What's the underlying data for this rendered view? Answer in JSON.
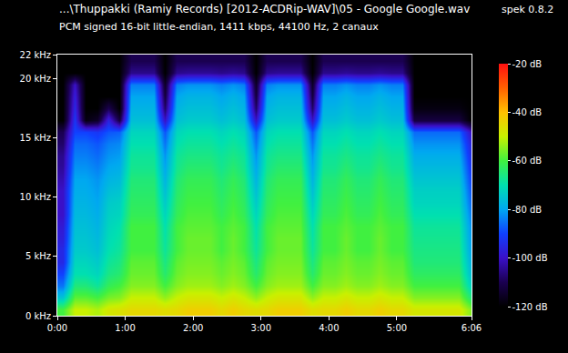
{
  "chart_data": {
    "type": "heatmap",
    "title": "...\\Thuppakki (Ramiy Records) [2012-ACDRip-WAV]\\05 - Google Google.wav",
    "subtitle": "PCM signed 16-bit little-endian, 1411 kbps, 44100 Hz, 2 canaux",
    "annotations": [
      "spek 0.8.2"
    ],
    "x": [
      5,
      15,
      25,
      35,
      45,
      55,
      65,
      75,
      85,
      95,
      105,
      115,
      125,
      135,
      145,
      155,
      165,
      175,
      185,
      195,
      205,
      215,
      225,
      235,
      245,
      255,
      265,
      275,
      285,
      295,
      305,
      315,
      325,
      335,
      345,
      355,
      365
    ],
    "y": [
      0.5,
      1.5,
      2.5,
      3.5,
      4.5,
      5.5,
      6.5,
      7.5,
      8.5,
      9.5,
      10.5,
      11.5,
      12.5,
      13.5,
      14.5,
      15.5,
      16.5,
      17.5,
      18.5,
      19.5,
      20.5,
      21.5
    ],
    "cells": [
      [
        -60,
        -75,
        -85,
        -90,
        -95,
        -95,
        -97,
        -98,
        -100,
        -100,
        -100,
        -102,
        -104,
        -105,
        -108,
        -110,
        -120,
        -120,
        -120,
        -120,
        -120,
        -120
      ],
      [
        -50,
        -58,
        -65,
        -70,
        -72,
        -74,
        -75,
        -76,
        -77,
        -78,
        -79,
        -80,
        -82,
        -84,
        -86,
        -90,
        -92,
        -95,
        -97,
        -100,
        -120,
        -120
      ],
      [
        -50,
        -58,
        -65,
        -70,
        -72,
        -74,
        -75,
        -76,
        -77,
        -78,
        -79,
        -80,
        -82,
        -84,
        -86,
        -90,
        -118,
        -120,
        -120,
        -120,
        -120,
        -120
      ],
      [
        -52,
        -60,
        -68,
        -72,
        -74,
        -76,
        -77,
        -78,
        -79,
        -80,
        -81,
        -82,
        -84,
        -86,
        -88,
        -92,
        -115,
        -120,
        -120,
        -120,
        -120,
        -120
      ],
      [
        -48,
        -56,
        -62,
        -66,
        -68,
        -70,
        -71,
        -72,
        -73,
        -74,
        -76,
        -78,
        -80,
        -82,
        -84,
        -88,
        -96,
        -110,
        -120,
        -120,
        -120,
        -120
      ],
      [
        -47,
        -55,
        -60,
        -64,
        -66,
        -68,
        -69,
        -70,
        -72,
        -73,
        -75,
        -77,
        -79,
        -81,
        -83,
        -87,
        -112,
        -120,
        -120,
        -120,
        -120,
        -120
      ],
      [
        -45,
        -50,
        -55,
        -57,
        -58,
        -60,
        -60,
        -60,
        -62,
        -63,
        -64,
        -65,
        -67,
        -68,
        -70,
        -72,
        -76,
        -78,
        -80,
        -84,
        -105,
        -110
      ],
      [
        -45,
        -50,
        -55,
        -57,
        -58,
        -60,
        -60,
        -60,
        -62,
        -63,
        -64,
        -65,
        -67,
        -68,
        -70,
        -72,
        -76,
        -78,
        -80,
        -84,
        -105,
        -110
      ],
      [
        -45,
        -50,
        -55,
        -57,
        -58,
        -60,
        -60,
        -60,
        -62,
        -63,
        -64,
        -65,
        -67,
        -68,
        -70,
        -72,
        -76,
        -78,
        -80,
        -84,
        -105,
        -110
      ],
      [
        -46,
        -54,
        -60,
        -64,
        -66,
        -68,
        -69,
        -70,
        -72,
        -74,
        -76,
        -78,
        -80,
        -82,
        -85,
        -88,
        -100,
        -108,
        -112,
        -115,
        -120,
        -120
      ],
      [
        -45,
        -50,
        -55,
        -57,
        -58,
        -60,
        -60,
        -60,
        -62,
        -63,
        -64,
        -65,
        -67,
        -68,
        -70,
        -72,
        -76,
        -78,
        -80,
        -84,
        -105,
        -110
      ],
      [
        -43,
        -48,
        -53,
        -55,
        -56,
        -57,
        -57,
        -58,
        -59,
        -60,
        -61,
        -62,
        -64,
        -66,
        -68,
        -70,
        -74,
        -76,
        -78,
        -82,
        -104,
        -110
      ],
      [
        -43,
        -48,
        -53,
        -55,
        -56,
        -57,
        -57,
        -58,
        -59,
        -60,
        -61,
        -62,
        -64,
        -66,
        -68,
        -70,
        -74,
        -76,
        -78,
        -82,
        -104,
        -110
      ],
      [
        -43,
        -48,
        -53,
        -55,
        -56,
        -57,
        -57,
        -58,
        -59,
        -60,
        -61,
        -62,
        -64,
        -66,
        -68,
        -70,
        -74,
        -76,
        -78,
        -82,
        -104,
        -110
      ],
      [
        -45,
        -50,
        -55,
        -57,
        -58,
        -60,
        -60,
        -60,
        -62,
        -63,
        -64,
        -65,
        -67,
        -68,
        -70,
        -72,
        -76,
        -78,
        -80,
        -84,
        -105,
        -110
      ],
      [
        -43,
        -48,
        -53,
        -55,
        -56,
        -57,
        -57,
        -58,
        -59,
        -60,
        -61,
        -62,
        -64,
        -66,
        -68,
        -70,
        -74,
        -76,
        -78,
        -82,
        -104,
        -110
      ],
      [
        -45,
        -50,
        -55,
        -57,
        -58,
        -60,
        -60,
        -60,
        -62,
        -63,
        -64,
        -65,
        -67,
        -68,
        -70,
        -72,
        -76,
        -78,
        -80,
        -84,
        -105,
        -110
      ],
      [
        -46,
        -54,
        -60,
        -64,
        -66,
        -68,
        -69,
        -70,
        -72,
        -74,
        -76,
        -78,
        -80,
        -82,
        -85,
        -88,
        -100,
        -108,
        -112,
        -115,
        -120,
        -120
      ],
      [
        -45,
        -50,
        -55,
        -57,
        -58,
        -60,
        -60,
        -60,
        -62,
        -63,
        -64,
        -65,
        -67,
        -68,
        -70,
        -72,
        -76,
        -78,
        -80,
        -84,
        -105,
        -110
      ],
      [
        -43,
        -48,
        -53,
        -55,
        -56,
        -57,
        -57,
        -58,
        -59,
        -60,
        -61,
        -62,
        -64,
        -66,
        -68,
        -70,
        -74,
        -76,
        -78,
        -82,
        -104,
        -110
      ],
      [
        -43,
        -48,
        -53,
        -55,
        -56,
        -57,
        -57,
        -58,
        -59,
        -60,
        -61,
        -62,
        -64,
        -66,
        -68,
        -70,
        -74,
        -76,
        -78,
        -82,
        -104,
        -110
      ],
      [
        -43,
        -48,
        -53,
        -55,
        -56,
        -57,
        -57,
        -58,
        -59,
        -60,
        -61,
        -62,
        -64,
        -66,
        -68,
        -70,
        -74,
        -76,
        -78,
        -82,
        -104,
        -110
      ],
      [
        -46,
        -54,
        -60,
        -64,
        -66,
        -68,
        -69,
        -70,
        -72,
        -74,
        -76,
        -78,
        -80,
        -82,
        -85,
        -88,
        -100,
        -108,
        -112,
        -115,
        -120,
        -120
      ],
      [
        -45,
        -50,
        -55,
        -57,
        -58,
        -60,
        -60,
        -60,
        -62,
        -63,
        -64,
        -65,
        -67,
        -68,
        -70,
        -72,
        -76,
        -78,
        -80,
        -84,
        -105,
        -110
      ],
      [
        -45,
        -50,
        -55,
        -57,
        -58,
        -60,
        -60,
        -60,
        -62,
        -63,
        -64,
        -65,
        -67,
        -68,
        -70,
        -72,
        -76,
        -78,
        -80,
        -84,
        -105,
        -110
      ],
      [
        -43,
        -48,
        -53,
        -55,
        -56,
        -57,
        -57,
        -58,
        -59,
        -60,
        -61,
        -62,
        -64,
        -66,
        -68,
        -70,
        -74,
        -76,
        -78,
        -82,
        -104,
        -110
      ],
      [
        -45,
        -50,
        -55,
        -57,
        -58,
        -60,
        -60,
        -60,
        -62,
        -63,
        -64,
        -65,
        -67,
        -68,
        -70,
        -72,
        -76,
        -78,
        -80,
        -84,
        -105,
        -110
      ],
      [
        -45,
        -50,
        -55,
        -57,
        -58,
        -60,
        -60,
        -60,
        -62,
        -63,
        -64,
        -65,
        -67,
        -68,
        -70,
        -72,
        -76,
        -78,
        -80,
        -84,
        -105,
        -110
      ],
      [
        -43,
        -48,
        -53,
        -55,
        -56,
        -57,
        -57,
        -58,
        -59,
        -60,
        -61,
        -62,
        -64,
        -66,
        -68,
        -70,
        -74,
        -76,
        -78,
        -82,
        -104,
        -110
      ],
      [
        -45,
        -50,
        -55,
        -57,
        -58,
        -60,
        -60,
        -60,
        -62,
        -63,
        -64,
        -65,
        -67,
        -68,
        -70,
        -72,
        -76,
        -78,
        -80,
        -84,
        -105,
        -110
      ],
      [
        -45,
        -50,
        -55,
        -57,
        -58,
        -60,
        -60,
        -60,
        -62,
        -63,
        -64,
        -65,
        -67,
        -68,
        -70,
        -72,
        -76,
        -78,
        -80,
        -84,
        -105,
        -110
      ],
      [
        -48,
        -55,
        -60,
        -63,
        -65,
        -66,
        -67,
        -68,
        -70,
        -72,
        -73,
        -75,
        -77,
        -79,
        -82,
        -86,
        -112,
        -118,
        -120,
        -120,
        -120,
        -120
      ],
      [
        -48,
        -55,
        -60,
        -63,
        -65,
        -66,
        -67,
        -68,
        -70,
        -72,
        -73,
        -75,
        -77,
        -79,
        -82,
        -86,
        -112,
        -118,
        -120,
        -120,
        -120,
        -120
      ],
      [
        -48,
        -55,
        -60,
        -63,
        -65,
        -66,
        -67,
        -68,
        -70,
        -72,
        -73,
        -75,
        -77,
        -79,
        -82,
        -86,
        -112,
        -118,
        -120,
        -120,
        -120,
        -120
      ],
      [
        -48,
        -55,
        -60,
        -63,
        -65,
        -66,
        -67,
        -68,
        -70,
        -72,
        -73,
        -75,
        -77,
        -79,
        -82,
        -86,
        -112,
        -118,
        -120,
        -120,
        -120,
        -120
      ],
      [
        -48,
        -55,
        -60,
        -63,
        -65,
        -66,
        -67,
        -68,
        -70,
        -72,
        -73,
        -75,
        -77,
        -79,
        -82,
        -86,
        -112,
        -118,
        -120,
        -120,
        -120,
        -120
      ],
      [
        -55,
        -65,
        -72,
        -76,
        -78,
        -80,
        -81,
        -82,
        -84,
        -86,
        -88,
        -90,
        -92,
        -94,
        -96,
        -100,
        -120,
        -120,
        -120,
        -120,
        -120,
        -120
      ]
    ],
    "xlim": [
      0,
      366
    ],
    "xticks": [
      {
        "value": 0,
        "label": "0:00"
      },
      {
        "value": 60,
        "label": "1:00"
      },
      {
        "value": 120,
        "label": "2:00"
      },
      {
        "value": 180,
        "label": "3:00"
      },
      {
        "value": 240,
        "label": "4:00"
      },
      {
        "value": 300,
        "label": "5:00"
      },
      {
        "value": 366,
        "label": "6:06"
      }
    ],
    "ylim": [
      0,
      22
    ],
    "yticks": [
      {
        "value": 0,
        "label": "0 kHz"
      },
      {
        "value": 5,
        "label": "5 kHz"
      },
      {
        "value": 10,
        "label": "10 kHz"
      },
      {
        "value": 15,
        "label": "15 kHz"
      },
      {
        "value": 20,
        "label": "20 kHz"
      },
      {
        "value": 22,
        "label": "22 kHz"
      }
    ],
    "zlim": [
      -120,
      -20
    ],
    "zticks": [
      {
        "value": -20,
        "label": "-20 dB"
      },
      {
        "value": -40,
        "label": "-40 dB"
      },
      {
        "value": -60,
        "label": "-60 dB"
      },
      {
        "value": -80,
        "label": "-80 dB"
      },
      {
        "value": -100,
        "label": "-100 dB"
      },
      {
        "value": -120,
        "label": "-120 dB"
      }
    ]
  }
}
